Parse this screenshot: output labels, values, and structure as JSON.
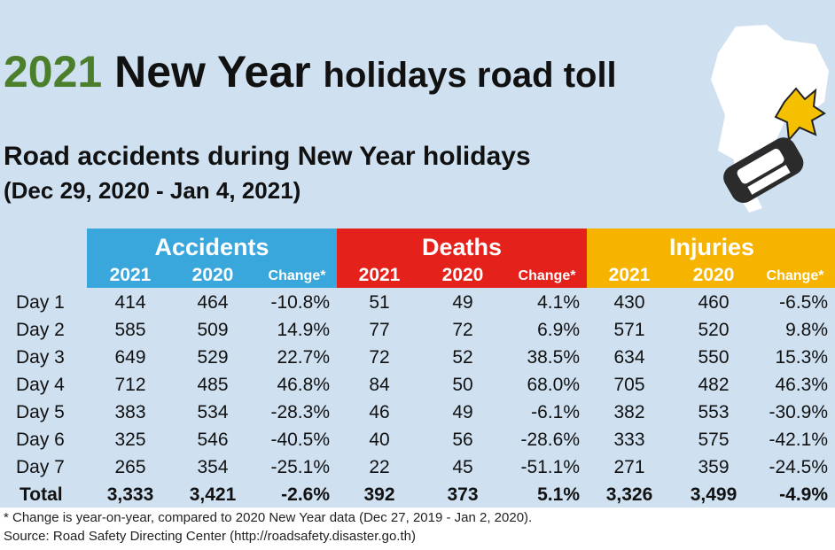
{
  "header": {
    "title_year": "2021",
    "title_main": "New Year",
    "title_rest": "holidays road toll",
    "subtitle": "Road accidents during New Year holidays",
    "period": "(Dec 29, 2020 - Jan 4, 2021)"
  },
  "table": {
    "groups": [
      "Accidents",
      "Deaths",
      "Injuries"
    ],
    "columns": [
      "2021",
      "2020",
      "Change*",
      "2021",
      "2020",
      "Change*",
      "2021",
      "2020",
      "Change*"
    ],
    "rows": [
      [
        "Day 1",
        "414",
        "464",
        "-10.8%",
        "51",
        "49",
        "4.1%",
        "430",
        "460",
        "-6.5%"
      ],
      [
        "Day 2",
        "585",
        "509",
        "14.9%",
        "77",
        "72",
        "6.9%",
        "571",
        "520",
        "9.8%"
      ],
      [
        "Day 3",
        "649",
        "529",
        "22.7%",
        "72",
        "52",
        "38.5%",
        "634",
        "550",
        "15.3%"
      ],
      [
        "Day 4",
        "712",
        "485",
        "46.8%",
        "84",
        "50",
        "68.0%",
        "705",
        "482",
        "46.3%"
      ],
      [
        "Day 5",
        "383",
        "534",
        "-28.3%",
        "46",
        "49",
        "-6.1%",
        "382",
        "553",
        "-30.9%"
      ],
      [
        "Day 6",
        "325",
        "546",
        "-40.5%",
        "40",
        "56",
        "-28.6%",
        "333",
        "575",
        "-42.1%"
      ],
      [
        "Day 7",
        "265",
        "354",
        "-25.1%",
        "22",
        "45",
        "-51.1%",
        "271",
        "359",
        "-24.5%"
      ],
      [
        "Total",
        "3,333",
        "3,421",
        "-2.6%",
        "392",
        "373",
        "5.1%",
        "3,326",
        "3,499",
        "-4.9%"
      ]
    ]
  },
  "footer": {
    "note": "* Change is year-on-year, compared to 2020 New Year data (Dec 27, 2019 - Jan 2, 2020).",
    "source": "Source: Road Safety Directing Center (http://roadsafety.disaster.go.th)"
  }
}
